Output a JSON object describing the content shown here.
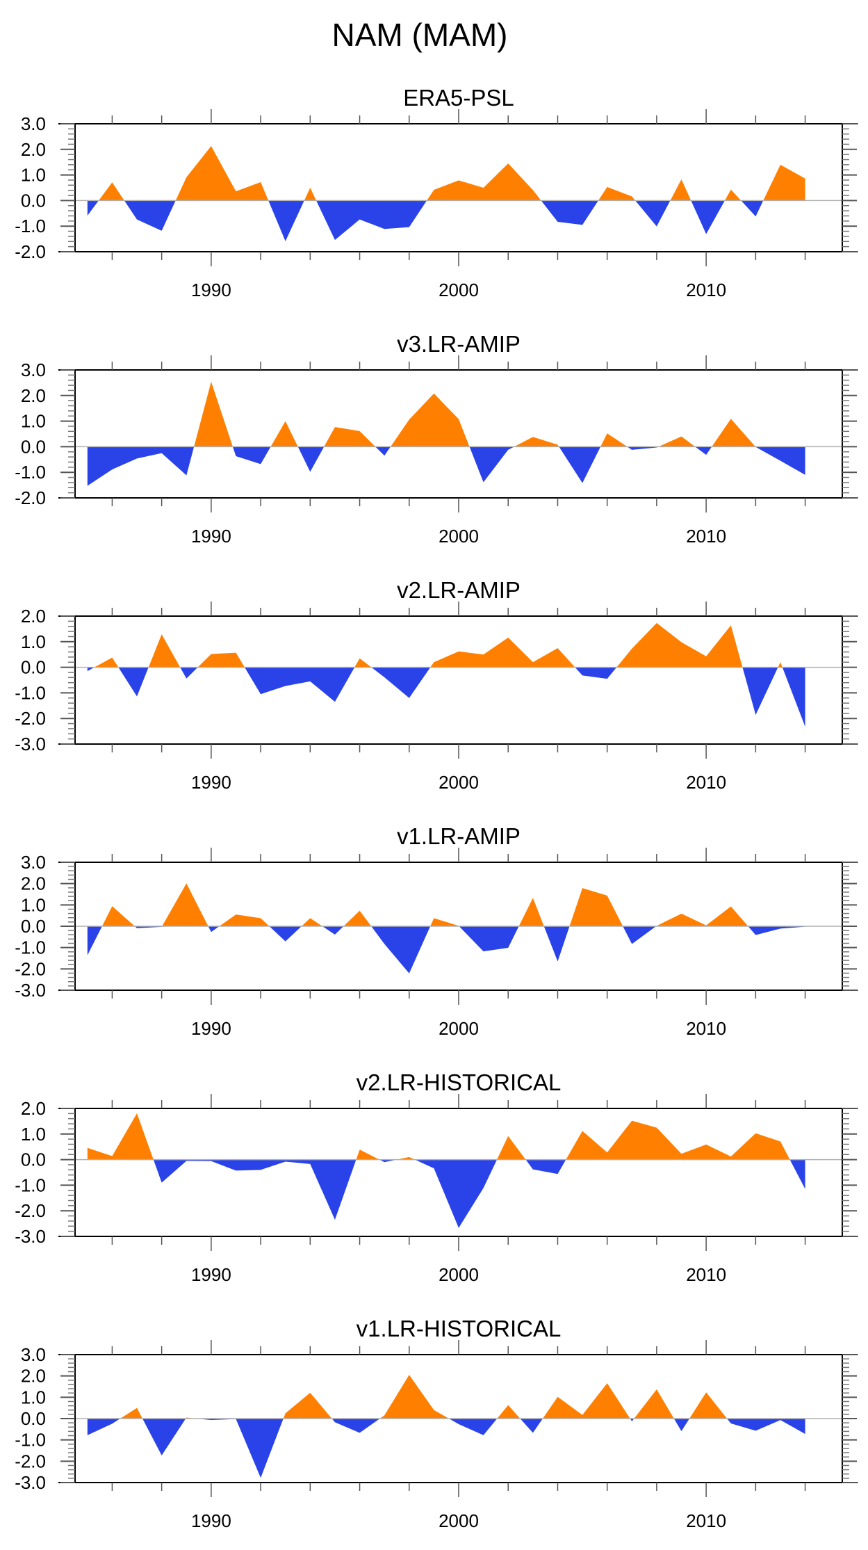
{
  "chart_data": {
    "type": "area",
    "title": "NAM (MAM)",
    "x": [
      1985,
      1986,
      1987,
      1988,
      1989,
      1990,
      1991,
      1992,
      1993,
      1994,
      1995,
      1996,
      1997,
      1998,
      1999,
      2000,
      2001,
      2002,
      2003,
      2004,
      2005,
      2006,
      2007,
      2008,
      2009,
      2010,
      2011,
      2012,
      2013,
      2014
    ],
    "xlim": [
      1984.5,
      2015.5
    ],
    "xticks": [
      1990,
      2000,
      2010
    ],
    "xtick_labels": [
      "1990",
      "2000",
      "2010"
    ],
    "xminor_step": 2,
    "positive_color": "#ff8000",
    "negative_color": "#2a43e8",
    "zero_line_color": "#b0b0b0",
    "grid": false,
    "legend": "none",
    "panels": [
      {
        "name": "ERA5-PSL",
        "ylim": [
          -2.0,
          3.0
        ],
        "yticks": [
          "3.0",
          "2.0",
          "1.0",
          "0.0",
          "-1.0",
          "-2.0"
        ],
        "values": [
          -0.59,
          0.71,
          -0.74,
          -1.18,
          0.91,
          2.13,
          0.36,
          0.72,
          -1.59,
          0.5,
          -1.54,
          -0.74,
          -1.11,
          -1.04,
          0.42,
          0.79,
          0.5,
          1.45,
          0.41,
          -0.83,
          -0.95,
          0.53,
          0.16,
          -1.01,
          0.83,
          -1.31,
          0.43,
          -0.62,
          1.4,
          0.86
        ]
      },
      {
        "name": "v3.LR-AMIP",
        "ylim": [
          -2.0,
          3.0
        ],
        "yticks": [
          "3.0",
          "2.0",
          "1.0",
          "0.0",
          "-1.0",
          "-2.0"
        ],
        "values": [
          -1.53,
          -0.89,
          -0.46,
          -0.25,
          -1.12,
          2.54,
          -0.37,
          -0.68,
          1.0,
          -0.98,
          0.77,
          0.61,
          -0.35,
          1.06,
          2.08,
          1.08,
          -1.39,
          -0.12,
          0.38,
          0.08,
          -1.42,
          0.52,
          -0.12,
          -0.03,
          0.4,
          -0.32,
          1.09,
          -0.01,
          -0.55,
          -1.1
        ]
      },
      {
        "name": "v2.LR-AMIP",
        "ylim": [
          -3.0,
          2.0
        ],
        "yticks": [
          "2.0",
          "1.0",
          "0.0",
          "-1.0",
          "-2.0",
          "-3.0"
        ],
        "values": [
          -0.15,
          0.38,
          -1.14,
          1.29,
          -0.44,
          0.52,
          0.57,
          -1.05,
          -0.73,
          -0.55,
          -1.35,
          0.35,
          -0.39,
          -1.2,
          0.2,
          0.62,
          0.5,
          1.16,
          0.2,
          0.75,
          -0.32,
          -0.45,
          0.73,
          1.73,
          0.98,
          0.43,
          1.64,
          -1.86,
          0.2,
          -2.32
        ]
      },
      {
        "name": "v1.LR-AMIP",
        "ylim": [
          -3.0,
          3.0
        ],
        "yticks": [
          "3.0",
          "2.0",
          "1.0",
          "0.0",
          "-1.0",
          "-2.0",
          "-3.0"
        ],
        "values": [
          -1.36,
          0.94,
          -0.09,
          -0.03,
          2.01,
          -0.27,
          0.55,
          0.38,
          -0.71,
          0.38,
          -0.39,
          0.73,
          -0.83,
          -2.21,
          0.38,
          0.02,
          -1.18,
          -1.01,
          1.33,
          -1.65,
          1.79,
          1.44,
          -0.83,
          0.02,
          0.59,
          0.04,
          0.93,
          -0.41,
          -0.11,
          -0.02
        ]
      },
      {
        "name": "v2.LR-HISTORICAL",
        "ylim": [
          -3.0,
          2.0
        ],
        "yticks": [
          "2.0",
          "1.0",
          "0.0",
          "-1.0",
          "-2.0",
          "-3.0"
        ],
        "values": [
          0.46,
          0.14,
          1.81,
          -0.9,
          -0.05,
          -0.06,
          -0.43,
          -0.4,
          -0.08,
          -0.17,
          -2.35,
          0.39,
          -0.1,
          0.1,
          -0.34,
          -2.67,
          -1.11,
          0.92,
          -0.38,
          -0.56,
          1.12,
          0.28,
          1.52,
          1.25,
          0.23,
          0.59,
          0.12,
          1.03,
          0.71,
          -1.15
        ]
      },
      {
        "name": "v1.LR-HISTORICAL",
        "ylim": [
          -3.0,
          3.0
        ],
        "yticks": [
          "3.0",
          "2.0",
          "1.0",
          "0.0",
          "-1.0",
          "-2.0",
          "-3.0"
        ],
        "values": [
          -0.78,
          -0.24,
          0.5,
          -1.73,
          0.05,
          -0.07,
          -0.02,
          -2.78,
          0.25,
          1.21,
          -0.17,
          -0.67,
          0.15,
          2.05,
          0.4,
          -0.26,
          -0.78,
          0.63,
          -0.67,
          1.02,
          0.17,
          1.66,
          -0.13,
          1.37,
          -0.59,
          1.23,
          -0.23,
          -0.57,
          -0.07,
          -0.72
        ]
      }
    ]
  }
}
